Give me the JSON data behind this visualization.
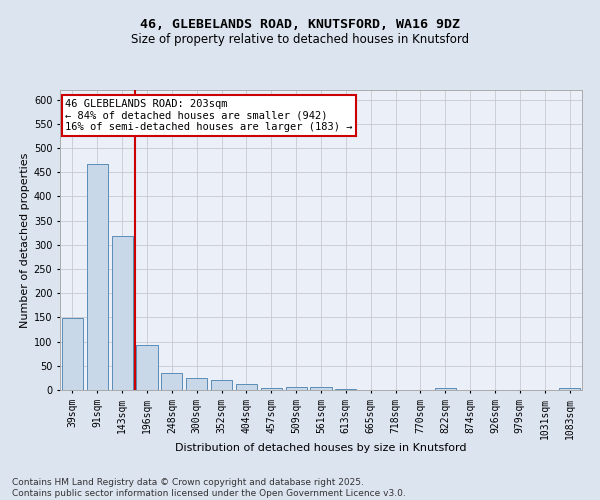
{
  "title_line1": "46, GLEBELANDS ROAD, KNUTSFORD, WA16 9DZ",
  "title_line2": "Size of property relative to detached houses in Knutsford",
  "xlabel": "Distribution of detached houses by size in Knutsford",
  "ylabel": "Number of detached properties",
  "categories": [
    "39sqm",
    "91sqm",
    "143sqm",
    "196sqm",
    "248sqm",
    "300sqm",
    "352sqm",
    "404sqm",
    "457sqm",
    "509sqm",
    "561sqm",
    "613sqm",
    "665sqm",
    "718sqm",
    "770sqm",
    "822sqm",
    "874sqm",
    "926sqm",
    "979sqm",
    "1031sqm",
    "1083sqm"
  ],
  "values": [
    148,
    468,
    319,
    93,
    36,
    24,
    21,
    12,
    5,
    7,
    6,
    2,
    0,
    0,
    0,
    4,
    0,
    0,
    0,
    0,
    4
  ],
  "bar_color": "#c8d8e8",
  "bar_edgecolor": "#5b8db8",
  "vline_x_index": 3,
  "annotation_text": "46 GLEBELANDS ROAD: 203sqm\n← 84% of detached houses are smaller (942)\n16% of semi-detached houses are larger (183) →",
  "annotation_box_color": "#ffffff",
  "annotation_box_edgecolor": "#cc0000",
  "vline_color": "#cc0000",
  "ylim": [
    0,
    620
  ],
  "yticks": [
    0,
    50,
    100,
    150,
    200,
    250,
    300,
    350,
    400,
    450,
    500,
    550,
    600
  ],
  "grid_color": "#c8c8d0",
  "background_color": "#dce4f0",
  "plot_bg_color": "#eaeff8",
  "footer_text": "Contains HM Land Registry data © Crown copyright and database right 2025.\nContains public sector information licensed under the Open Government Licence v3.0.",
  "title_fontsize": 9.5,
  "subtitle_fontsize": 8.5,
  "axis_label_fontsize": 8,
  "tick_fontsize": 7,
  "annotation_fontsize": 7.5,
  "footer_fontsize": 6.5
}
